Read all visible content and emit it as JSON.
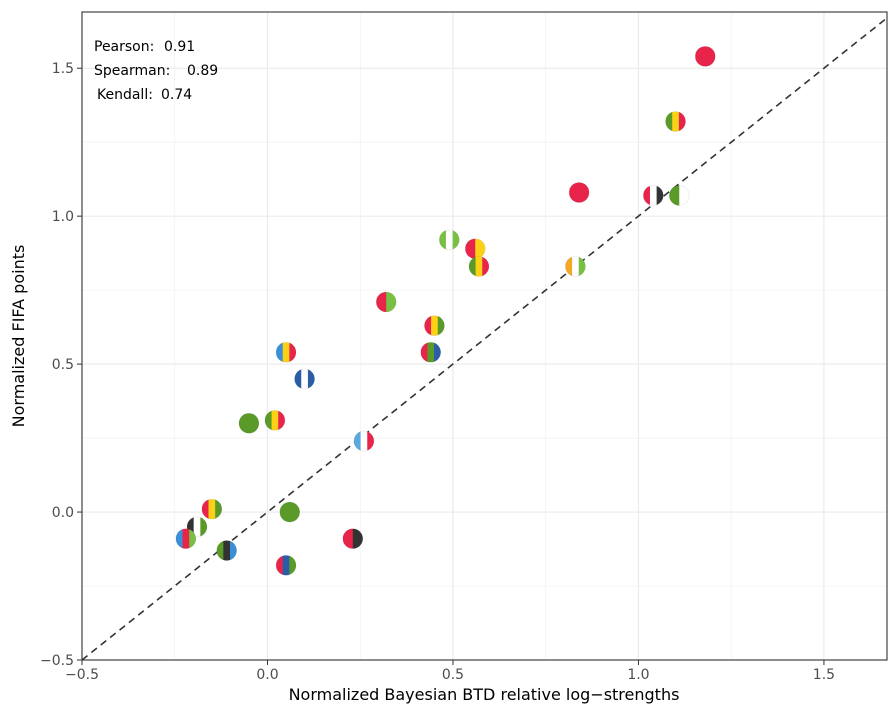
{
  "chart_data": {
    "type": "scatter",
    "title": "",
    "xlabel": "Normalized Bayesian BTD relative log−strengths",
    "ylabel": "Normalized FIFA points",
    "xlim": [
      -0.5,
      1.67
    ],
    "ylim": [
      -0.5,
      1.69
    ],
    "x_ticks": [
      -0.5,
      0.0,
      0.5,
      1.0,
      1.5
    ],
    "x_tick_labels": [
      "−0.5",
      "0.0",
      "0.5",
      "1.0",
      "1.5"
    ],
    "y_ticks": [
      -0.5,
      0.0,
      0.5,
      1.0,
      1.5
    ],
    "y_tick_labels": [
      "−0.5",
      "0.0",
      "0.5",
      "1.0",
      "1.5"
    ],
    "grid": true,
    "reference_line": {
      "type": "identity",
      "style": "dashed",
      "color": "#333333"
    },
    "annotations": [
      {
        "label": "Pearson:",
        "value": "0.91"
      },
      {
        "label": "Spearman:",
        "value": "0.89"
      },
      {
        "label": "Kendall:",
        "value": "0.74"
      }
    ],
    "points": [
      {
        "x": 1.18,
        "y": 1.54,
        "colors": [
          "#e8244a",
          "#e8244a"
        ]
      },
      {
        "x": 1.1,
        "y": 1.32,
        "colors": [
          "#5a9a28",
          "#fcd116",
          "#e8244a"
        ]
      },
      {
        "x": 0.84,
        "y": 1.08,
        "colors": [
          "#e8244a",
          "#e8244a"
        ]
      },
      {
        "x": 1.04,
        "y": 1.07,
        "colors": [
          "#e8244a",
          "#ffffff",
          "#333333"
        ]
      },
      {
        "x": 1.11,
        "y": 1.07,
        "colors": [
          "#5a9a28",
          "#ffffff"
        ]
      },
      {
        "x": 0.49,
        "y": 0.92,
        "colors": [
          "#78c043",
          "#ffffff",
          "#78c043"
        ]
      },
      {
        "x": 0.56,
        "y": 0.89,
        "colors": [
          "#e8244a",
          "#fcd116"
        ]
      },
      {
        "x": 0.57,
        "y": 0.83,
        "colors": [
          "#5a9a28",
          "#fcd116",
          "#e8244a"
        ]
      },
      {
        "x": 0.83,
        "y": 0.83,
        "colors": [
          "#f5a623",
          "#ffffff",
          "#78c043"
        ]
      },
      {
        "x": 0.32,
        "y": 0.71,
        "colors": [
          "#e8244a",
          "#78c043"
        ]
      },
      {
        "x": 0.45,
        "y": 0.63,
        "colors": [
          "#e8244a",
          "#fcd116",
          "#5a9a28"
        ]
      },
      {
        "x": 0.44,
        "y": 0.54,
        "colors": [
          "#e8244a",
          "#5a9a28",
          "#2a5ca8"
        ]
      },
      {
        "x": 0.05,
        "y": 0.54,
        "colors": [
          "#3a8fd8",
          "#fcd116",
          "#e8244a"
        ]
      },
      {
        "x": 0.1,
        "y": 0.45,
        "colors": [
          "#2a5ca8",
          "#ffffff",
          "#2a5ca8"
        ]
      },
      {
        "x": -0.05,
        "y": 0.3,
        "colors": [
          "#5a9a28",
          "#5a9a28"
        ]
      },
      {
        "x": 0.02,
        "y": 0.31,
        "colors": [
          "#5a9a28",
          "#fcd116",
          "#e8244a"
        ]
      },
      {
        "x": 0.26,
        "y": 0.24,
        "colors": [
          "#5ba8e0",
          "#ffffff",
          "#e8244a"
        ]
      },
      {
        "x": 0.06,
        "y": 0.0,
        "colors": [
          "#5a9a28",
          "#5a9a28"
        ]
      },
      {
        "x": -0.15,
        "y": 0.01,
        "colors": [
          "#e8244a",
          "#fcd116",
          "#5a9a28"
        ]
      },
      {
        "x": -0.19,
        "y": -0.05,
        "colors": [
          "#333333",
          "#ffffff",
          "#5a9a28"
        ]
      },
      {
        "x": -0.22,
        "y": -0.09,
        "colors": [
          "#3a8fd8",
          "#e8244a",
          "#78c043"
        ]
      },
      {
        "x": -0.11,
        "y": -0.13,
        "colors": [
          "#5a9a28",
          "#333333",
          "#3a8fd8"
        ]
      },
      {
        "x": 0.23,
        "y": -0.09,
        "colors": [
          "#e8244a",
          "#333333"
        ]
      },
      {
        "x": 0.05,
        "y": -0.18,
        "colors": [
          "#e8244a",
          "#2a5ca8",
          "#5a9a28"
        ]
      }
    ]
  }
}
